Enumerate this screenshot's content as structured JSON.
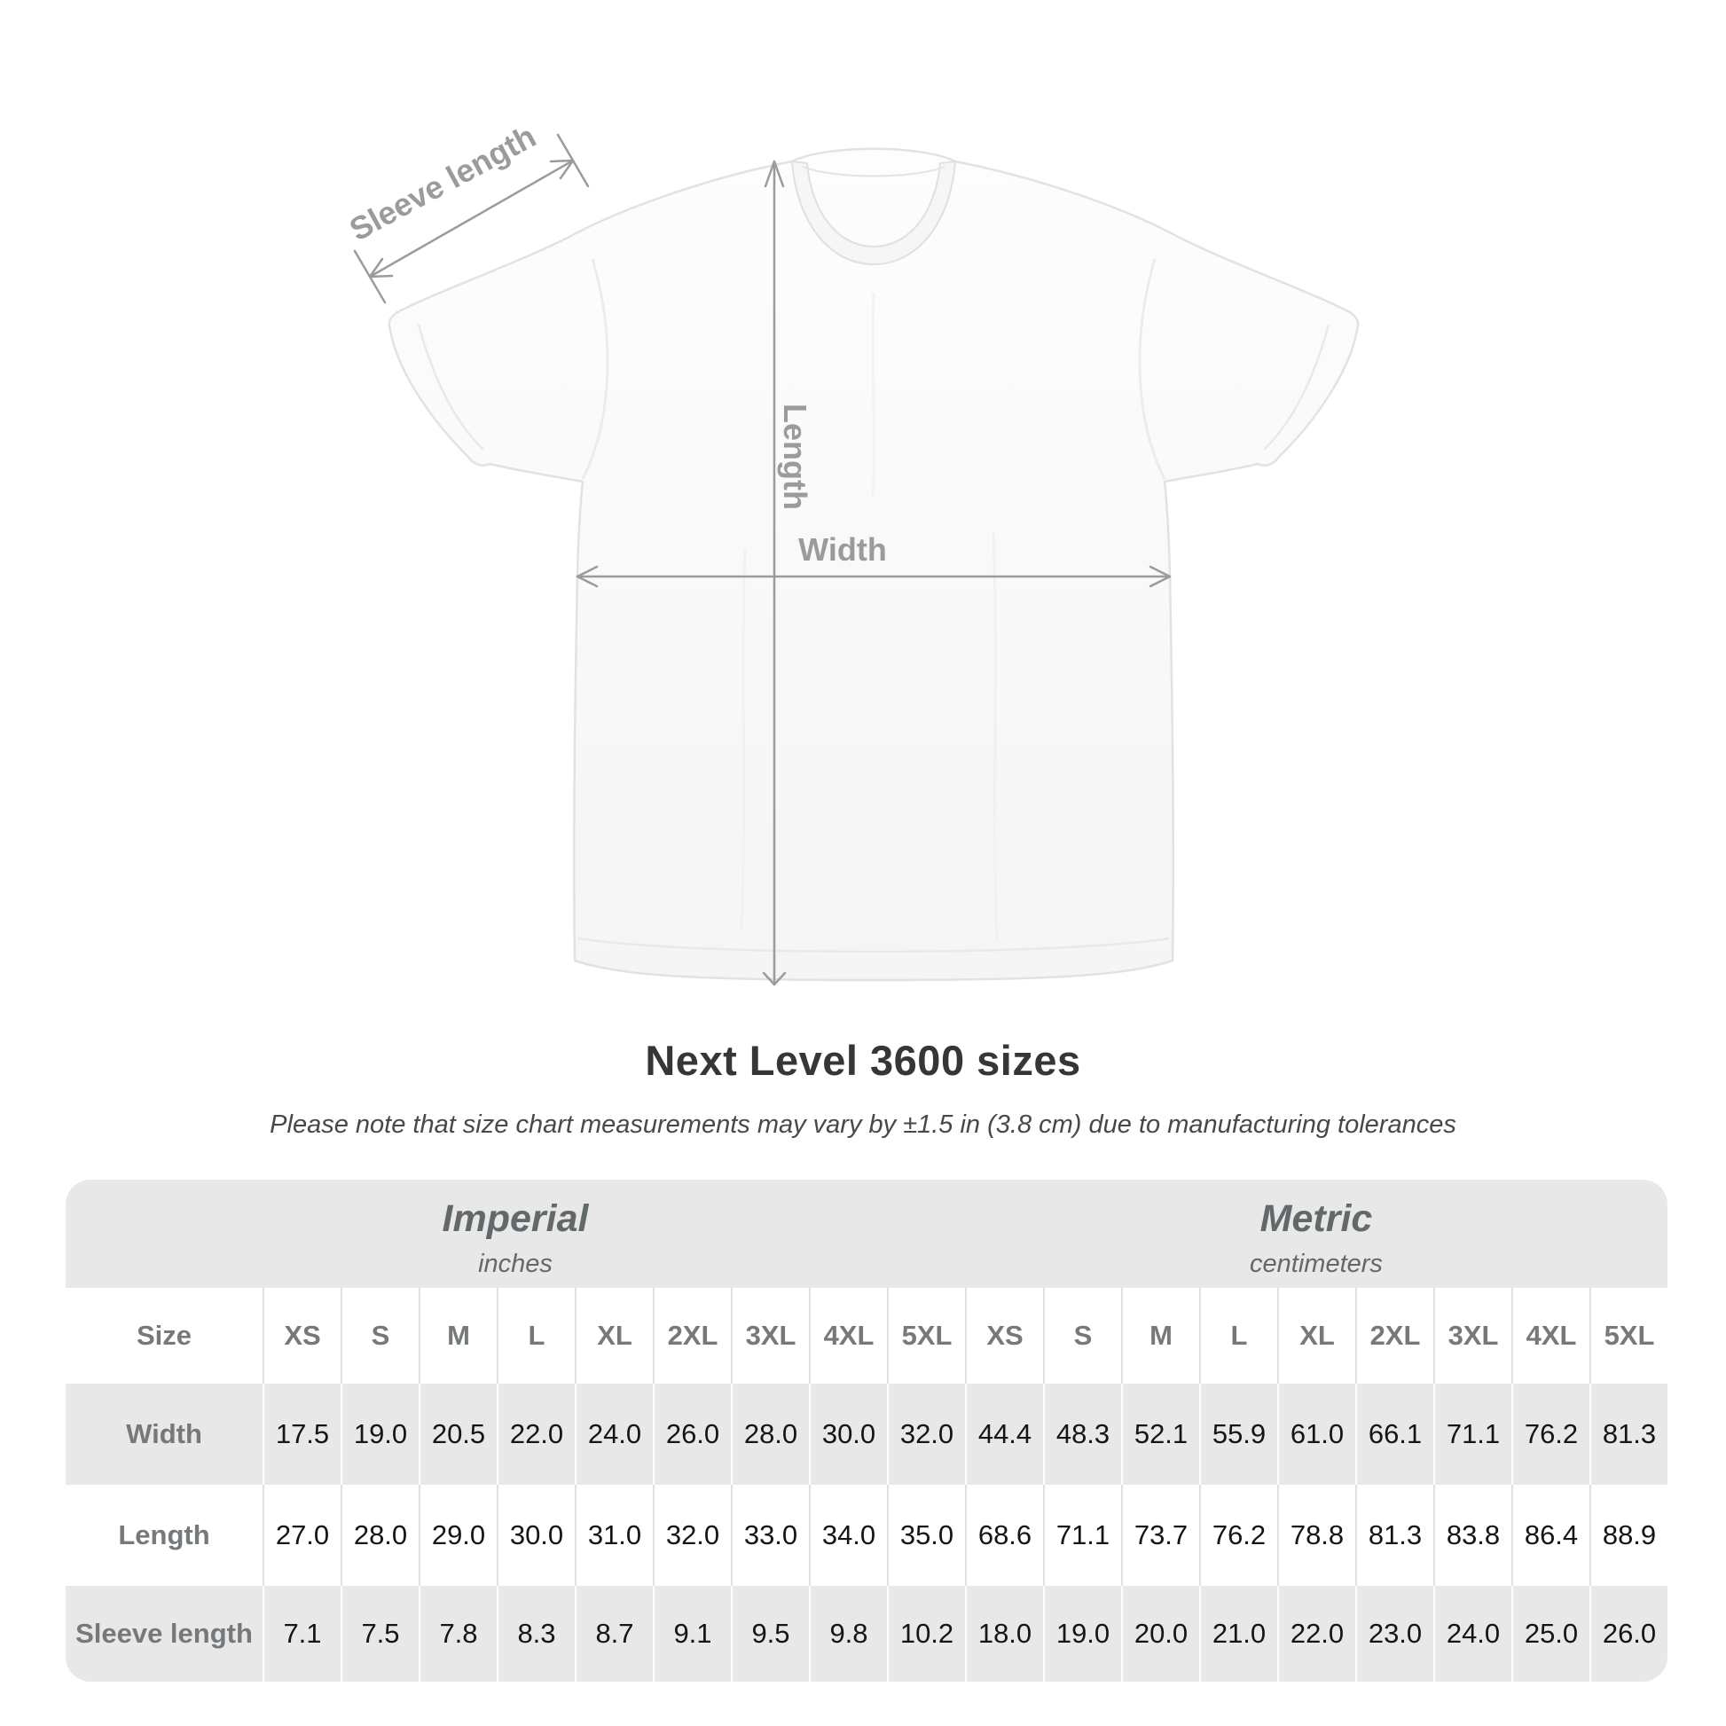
{
  "title": "Next Level 3600 sizes",
  "subtitle": "Please note that size chart measurements may vary by ±1.5 in (3.8 cm) due to manufacturing tolerances",
  "diagram": {
    "labels": {
      "sleeve": "Sleeve length",
      "length": "Length",
      "width": "Width"
    }
  },
  "colors": {
    "annotation_gray": "#9b9b9b",
    "label_gray": "#75797c",
    "unit_header_gray": "#63686b",
    "band_gray": "#e8e8e8",
    "value_dark": "#151515"
  },
  "table": {
    "unit_headers": [
      {
        "title": "Imperial",
        "subtitle": "inches"
      },
      {
        "title": "Metric",
        "subtitle": "centimeters"
      }
    ],
    "corner_label": "Size",
    "size_columns": [
      "XS",
      "S",
      "M",
      "L",
      "XL",
      "2XL",
      "3XL",
      "4XL",
      "5XL",
      "XS",
      "S",
      "M",
      "L",
      "XL",
      "2XL",
      "3XL",
      "4XL",
      "5XL"
    ],
    "rows": [
      {
        "label": "Width",
        "values": [
          "17.5",
          "19.0",
          "20.5",
          "22.0",
          "24.0",
          "26.0",
          "28.0",
          "30.0",
          "32.0",
          "44.4",
          "48.3",
          "52.1",
          "55.9",
          "61.0",
          "66.1",
          "71.1",
          "76.2",
          "81.3"
        ]
      },
      {
        "label": "Length",
        "values": [
          "27.0",
          "28.0",
          "29.0",
          "30.0",
          "31.0",
          "32.0",
          "33.0",
          "34.0",
          "35.0",
          "68.6",
          "71.1",
          "73.7",
          "76.2",
          "78.8",
          "81.3",
          "83.8",
          "86.4",
          "88.9"
        ]
      },
      {
        "label": "Sleeve length",
        "values": [
          "7.1",
          "7.5",
          "7.8",
          "8.3",
          "8.7",
          "9.1",
          "9.5",
          "9.8",
          "10.2",
          "18.0",
          "19.0",
          "20.0",
          "21.0",
          "22.0",
          "23.0",
          "24.0",
          "25.0",
          "26.0"
        ]
      }
    ]
  }
}
